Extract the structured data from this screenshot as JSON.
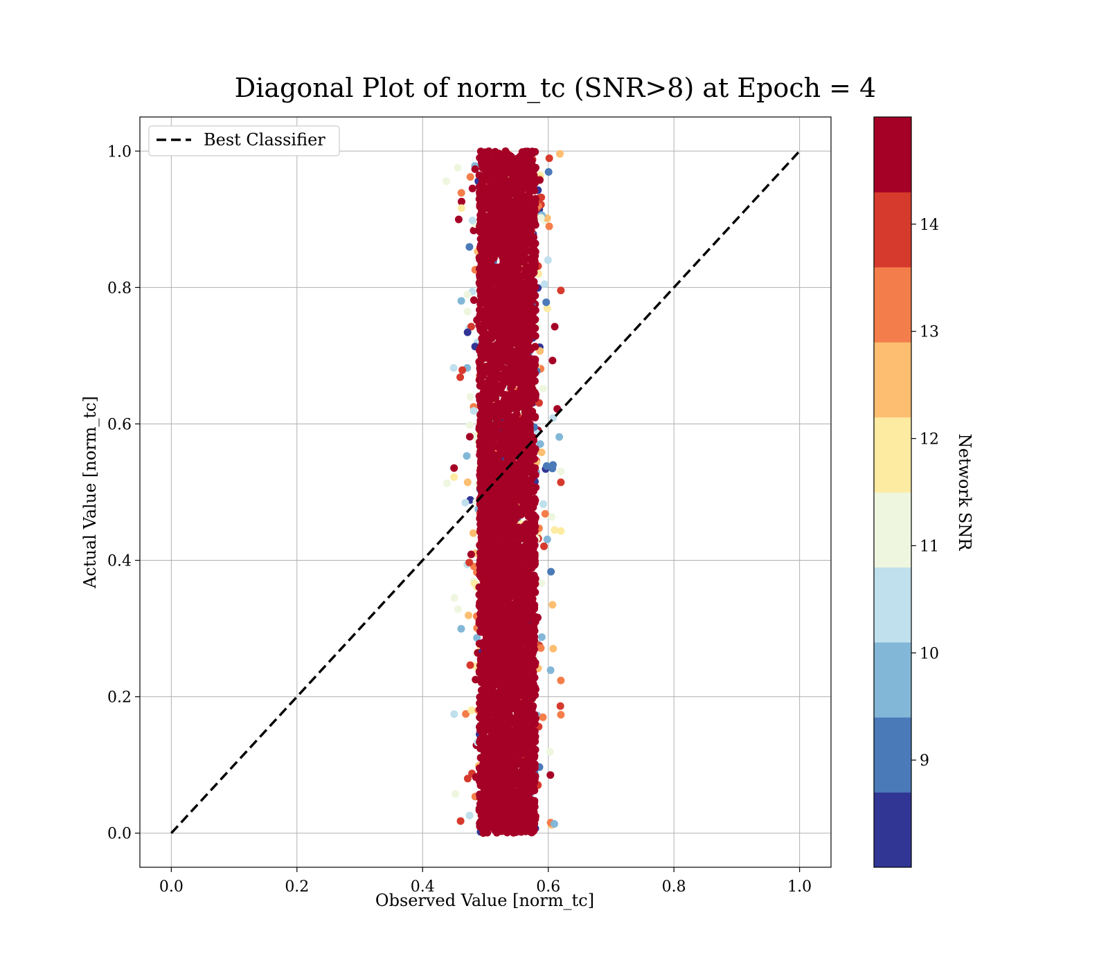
{
  "chart_data": {
    "type": "scatter",
    "title": "Diagonal Plot of norm_tc (SNR>8) at Epoch = 4",
    "xlabel": "Observed Value [norm_tc]",
    "ylabel": "Actual Value [norm_tc]",
    "xlim": [
      -0.05,
      1.05
    ],
    "ylim": [
      -0.05,
      1.05
    ],
    "x_ticks": [
      "0.0",
      "0.2",
      "0.4",
      "0.6",
      "0.8",
      "1.0"
    ],
    "y_ticks": [
      "0.0",
      "0.2",
      "0.4",
      "0.6",
      "0.8",
      "1.0"
    ],
    "grid": true,
    "legend": {
      "placement": "upper-left",
      "entries": [
        "Best Classifier"
      ]
    },
    "reference_line": {
      "name": "Best Classifier",
      "style": "dashed",
      "color": "#000000",
      "points": [
        [
          0.0,
          0.0
        ],
        [
          1.0,
          1.0
        ]
      ]
    },
    "scatter_summary": {
      "y_range": [
        0.0,
        1.0
      ],
      "core_x_center": 0.535,
      "core_x_halfwidth": 0.045,
      "full_x_range": [
        0.41,
        0.62
      ],
      "dominant_color_snr": "14+"
    },
    "colorbar": {
      "label": "Network SNR",
      "range": [
        8.0,
        15.0
      ],
      "ticks": [
        "9",
        "10",
        "11",
        "12",
        "13",
        "14"
      ],
      "bins": [
        {
          "from": 8.0,
          "to": 8.7,
          "color": "#313695"
        },
        {
          "from": 8.7,
          "to": 9.4,
          "color": "#4a7ab8"
        },
        {
          "from": 9.4,
          "to": 10.1,
          "color": "#83b7d7"
        },
        {
          "from": 10.1,
          "to": 10.8,
          "color": "#bfe0ec"
        },
        {
          "from": 10.8,
          "to": 11.5,
          "color": "#eef6df"
        },
        {
          "from": 11.5,
          "to": 12.2,
          "color": "#fdeba1"
        },
        {
          "from": 12.2,
          "to": 12.9,
          "color": "#fdbe71"
        },
        {
          "from": 12.9,
          "to": 13.6,
          "color": "#f47e4b"
        },
        {
          "from": 13.6,
          "to": 14.3,
          "color": "#d63a2d"
        },
        {
          "from": 14.3,
          "to": 15.0,
          "color": "#a50026"
        }
      ]
    }
  }
}
